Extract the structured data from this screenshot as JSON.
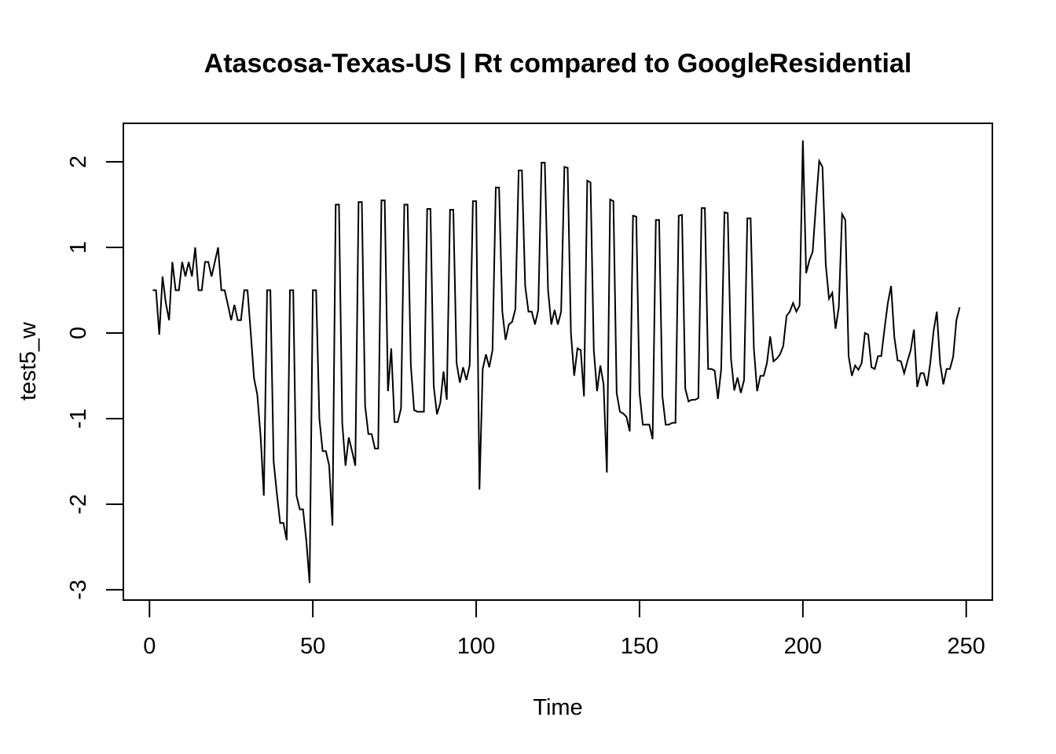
{
  "chart_data": {
    "type": "line",
    "title": "Atascosa-Texas-US | Rt compared to GoogleResidential",
    "xlabel": "Time",
    "ylabel": "test5_w",
    "xlim": [
      -8,
      258
    ],
    "ylim": [
      -3.12,
      2.45
    ],
    "x_ticks": [
      0,
      50,
      100,
      150,
      200,
      250
    ],
    "y_ticks": [
      -3,
      -2,
      -1,
      0,
      1,
      2
    ],
    "grid": false,
    "legend": "none",
    "line_color": "#000000",
    "series": [
      {
        "points": [
          [
            1,
            0.5
          ],
          [
            2,
            0.5
          ],
          [
            3,
            -0.02
          ],
          [
            4,
            0.66
          ],
          [
            5,
            0.35
          ],
          [
            6,
            0.15
          ],
          [
            7,
            0.83
          ],
          [
            8,
            0.5
          ],
          [
            9,
            0.5
          ],
          [
            10,
            0.83
          ],
          [
            11,
            0.66
          ],
          [
            12,
            0.83
          ],
          [
            13,
            0.66
          ],
          [
            14,
            1.0
          ],
          [
            15,
            0.5
          ],
          [
            16,
            0.5
          ],
          [
            17,
            0.83
          ],
          [
            18,
            0.83
          ],
          [
            19,
            0.66
          ],
          [
            20,
            0.83
          ],
          [
            21,
            1.0
          ],
          [
            22,
            0.5
          ],
          [
            23,
            0.5
          ],
          [
            24,
            0.33
          ],
          [
            25,
            0.15
          ],
          [
            26,
            0.33
          ],
          [
            27,
            0.15
          ],
          [
            28,
            0.15
          ],
          [
            29,
            0.5
          ],
          [
            30,
            0.5
          ],
          [
            31,
            0.0
          ],
          [
            32,
            -0.53
          ],
          [
            33,
            -0.72
          ],
          [
            34,
            -1.2
          ],
          [
            35,
            -1.9
          ],
          [
            36,
            0.5
          ],
          [
            37,
            0.5
          ],
          [
            38,
            -1.5
          ],
          [
            39,
            -1.88
          ],
          [
            40,
            -2.22
          ],
          [
            41,
            -2.22
          ],
          [
            42,
            -2.42
          ],
          [
            43,
            0.5
          ],
          [
            44,
            0.5
          ],
          [
            45,
            -1.9
          ],
          [
            46,
            -2.06
          ],
          [
            47,
            -2.06
          ],
          [
            48,
            -2.42
          ],
          [
            49,
            -2.92
          ],
          [
            50,
            0.5
          ],
          [
            51,
            0.5
          ],
          [
            52,
            -1.0
          ],
          [
            53,
            -1.38
          ],
          [
            54,
            -1.38
          ],
          [
            55,
            -1.55
          ],
          [
            56,
            -2.25
          ],
          [
            57,
            1.5
          ],
          [
            58,
            1.5
          ],
          [
            59,
            -1.05
          ],
          [
            60,
            -1.55
          ],
          [
            61,
            -1.22
          ],
          [
            62,
            -1.38
          ],
          [
            63,
            -1.55
          ],
          [
            64,
            1.53
          ],
          [
            65,
            1.53
          ],
          [
            66,
            -0.85
          ],
          [
            67,
            -1.18
          ],
          [
            68,
            -1.18
          ],
          [
            69,
            -1.35
          ],
          [
            70,
            -1.35
          ],
          [
            71,
            1.55
          ],
          [
            72,
            1.55
          ],
          [
            73,
            -0.68
          ],
          [
            74,
            -0.18
          ],
          [
            75,
            -1.04
          ],
          [
            76,
            -1.04
          ],
          [
            77,
            -0.88
          ],
          [
            78,
            1.5
          ],
          [
            79,
            1.5
          ],
          [
            80,
            -0.38
          ],
          [
            81,
            -0.9
          ],
          [
            82,
            -0.92
          ],
          [
            83,
            -0.92
          ],
          [
            84,
            -0.92
          ],
          [
            85,
            1.45
          ],
          [
            86,
            1.45
          ],
          [
            87,
            -0.62
          ],
          [
            88,
            -0.95
          ],
          [
            89,
            -0.82
          ],
          [
            90,
            -0.45
          ],
          [
            91,
            -0.78
          ],
          [
            92,
            1.44
          ],
          [
            93,
            1.44
          ],
          [
            94,
            -0.35
          ],
          [
            95,
            -0.58
          ],
          [
            96,
            -0.4
          ],
          [
            97,
            -0.55
          ],
          [
            98,
            -0.38
          ],
          [
            99,
            1.54
          ],
          [
            100,
            1.54
          ],
          [
            101,
            -1.83
          ],
          [
            102,
            -0.42
          ],
          [
            103,
            -0.25
          ],
          [
            104,
            -0.4
          ],
          [
            105,
            -0.2
          ],
          [
            106,
            1.7
          ],
          [
            107,
            1.7
          ],
          [
            108,
            0.25
          ],
          [
            109,
            -0.08
          ],
          [
            110,
            0.1
          ],
          [
            111,
            0.13
          ],
          [
            112,
            0.28
          ],
          [
            113,
            1.9
          ],
          [
            114,
            1.9
          ],
          [
            115,
            0.55
          ],
          [
            116,
            0.25
          ],
          [
            117,
            0.25
          ],
          [
            118,
            0.1
          ],
          [
            119,
            0.27
          ],
          [
            120,
            1.99
          ],
          [
            121,
            1.99
          ],
          [
            122,
            0.5
          ],
          [
            123,
            0.1
          ],
          [
            124,
            0.27
          ],
          [
            125,
            0.1
          ],
          [
            126,
            0.25
          ],
          [
            127,
            1.94
          ],
          [
            128,
            1.93
          ],
          [
            129,
            0.0
          ],
          [
            130,
            -0.5
          ],
          [
            131,
            -0.18
          ],
          [
            132,
            -0.2
          ],
          [
            133,
            -0.74
          ],
          [
            134,
            1.78
          ],
          [
            135,
            1.76
          ],
          [
            136,
            -0.2
          ],
          [
            137,
            -0.68
          ],
          [
            138,
            -0.38
          ],
          [
            139,
            -0.6
          ],
          [
            140,
            -1.63
          ],
          [
            141,
            1.56
          ],
          [
            142,
            1.54
          ],
          [
            143,
            -0.7
          ],
          [
            144,
            -0.92
          ],
          [
            145,
            -0.94
          ],
          [
            146,
            -0.98
          ],
          [
            147,
            -1.15
          ],
          [
            148,
            1.37
          ],
          [
            149,
            1.36
          ],
          [
            150,
            -0.7
          ],
          [
            151,
            -1.07
          ],
          [
            152,
            -1.07
          ],
          [
            153,
            -1.07
          ],
          [
            154,
            -1.24
          ],
          [
            155,
            1.32
          ],
          [
            156,
            1.32
          ],
          [
            157,
            -0.74
          ],
          [
            158,
            -1.07
          ],
          [
            159,
            -1.07
          ],
          [
            160,
            -1.05
          ],
          [
            161,
            -1.05
          ],
          [
            162,
            1.37
          ],
          [
            163,
            1.38
          ],
          [
            164,
            -0.65
          ],
          [
            165,
            -0.8
          ],
          [
            166,
            -0.78
          ],
          [
            167,
            -0.78
          ],
          [
            168,
            -0.76
          ],
          [
            169,
            1.46
          ],
          [
            170,
            1.46
          ],
          [
            171,
            -0.42
          ],
          [
            172,
            -0.42
          ],
          [
            173,
            -0.44
          ],
          [
            174,
            -0.77
          ],
          [
            175,
            -0.42
          ],
          [
            176,
            1.41
          ],
          [
            177,
            1.4
          ],
          [
            178,
            -0.3
          ],
          [
            179,
            -0.67
          ],
          [
            180,
            -0.52
          ],
          [
            181,
            -0.7
          ],
          [
            182,
            -0.55
          ],
          [
            183,
            1.34
          ],
          [
            184,
            1.34
          ],
          [
            185,
            -0.18
          ],
          [
            186,
            -0.68
          ],
          [
            187,
            -0.5
          ],
          [
            188,
            -0.5
          ],
          [
            189,
            -0.35
          ],
          [
            190,
            -0.04
          ],
          [
            191,
            -0.33
          ],
          [
            192,
            -0.3
          ],
          [
            193,
            -0.25
          ],
          [
            194,
            -0.15
          ],
          [
            195,
            0.2
          ],
          [
            196,
            0.25
          ],
          [
            197,
            0.35
          ],
          [
            198,
            0.25
          ],
          [
            199,
            0.32
          ],
          [
            200,
            2.25
          ],
          [
            201,
            0.7
          ],
          [
            202,
            0.85
          ],
          [
            203,
            0.95
          ],
          [
            204,
            1.5
          ],
          [
            205,
            2.01
          ],
          [
            206,
            1.94
          ],
          [
            207,
            0.8
          ],
          [
            208,
            0.4
          ],
          [
            209,
            0.47
          ],
          [
            210,
            0.05
          ],
          [
            211,
            0.3
          ],
          [
            212,
            1.39
          ],
          [
            213,
            1.32
          ],
          [
            214,
            -0.27
          ],
          [
            215,
            -0.5
          ],
          [
            216,
            -0.38
          ],
          [
            217,
            -0.43
          ],
          [
            218,
            -0.35
          ],
          [
            219,
            0.0
          ],
          [
            220,
            -0.02
          ],
          [
            221,
            -0.4
          ],
          [
            222,
            -0.42
          ],
          [
            223,
            -0.27
          ],
          [
            224,
            -0.27
          ],
          [
            225,
            0.05
          ],
          [
            226,
            0.35
          ],
          [
            227,
            0.55
          ],
          [
            228,
            -0.05
          ],
          [
            229,
            -0.32
          ],
          [
            230,
            -0.33
          ],
          [
            231,
            -0.47
          ],
          [
            232,
            -0.33
          ],
          [
            233,
            -0.2
          ],
          [
            234,
            0.04
          ],
          [
            235,
            -0.63
          ],
          [
            236,
            -0.47
          ],
          [
            237,
            -0.47
          ],
          [
            238,
            -0.62
          ],
          [
            239,
            -0.35
          ],
          [
            240,
            0.02
          ],
          [
            241,
            0.25
          ],
          [
            242,
            -0.35
          ],
          [
            243,
            -0.6
          ],
          [
            244,
            -0.42
          ],
          [
            245,
            -0.42
          ],
          [
            246,
            -0.28
          ],
          [
            247,
            0.15
          ],
          [
            248,
            0.3
          ]
        ]
      }
    ]
  }
}
